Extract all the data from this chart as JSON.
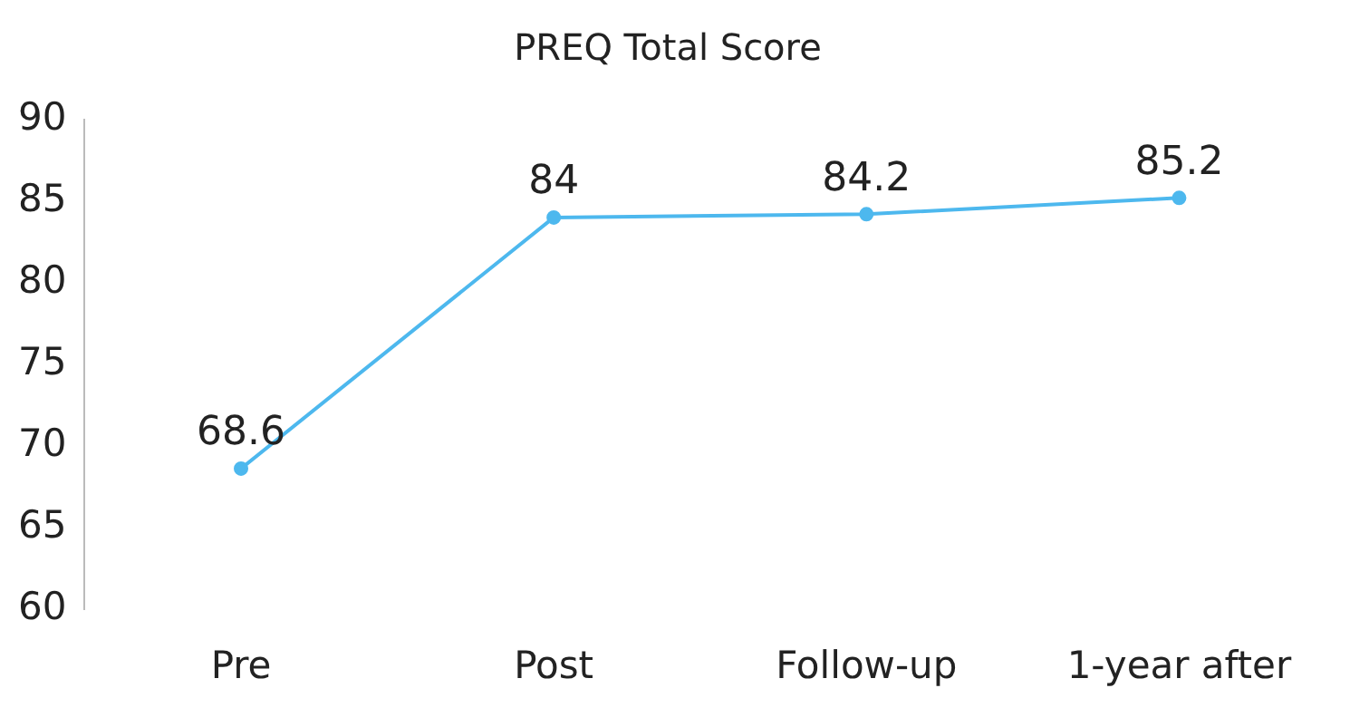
{
  "chart_data": {
    "type": "line",
    "title": "PREQ Total Score",
    "categories": [
      "Pre",
      "Post",
      "Follow-up",
      "1-year after"
    ],
    "series": [
      {
        "color": "#4db8ee",
        "values": [
          68.6,
          84,
          84.2,
          85.2
        ]
      }
    ],
    "ylim": [
      60,
      90
    ],
    "yticks": [
      60,
      65,
      70,
      75,
      80,
      85,
      90
    ],
    "grid": false,
    "legend": false,
    "marker": "circle",
    "line_style": "solid",
    "data_labels": true
  }
}
